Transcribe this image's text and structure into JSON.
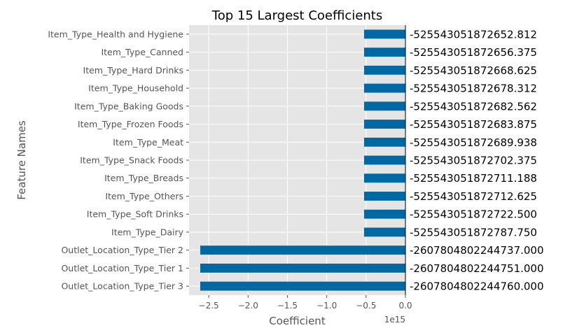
{
  "chart_data": {
    "type": "bar",
    "orientation": "horizontal",
    "title": "Top 15 Largest Coefficients",
    "xlabel": "Coefficient",
    "ylabel": "Feature Names",
    "x_offset_label": "1e15",
    "xlim": [
      -2750000000000000.0,
      0
    ],
    "xticks": [
      -2500000000000000.0,
      -2000000000000000.0,
      -1500000000000000.0,
      -1000000000000000.0,
      -500000000000000.0,
      0
    ],
    "xtick_labels": [
      "−2.5",
      "−2.0",
      "−1.5",
      "−1.0",
      "−0.5",
      "0.0"
    ],
    "grid": true,
    "legend": false,
    "colors": {
      "bar": "#0068A3",
      "plot_background": "#E5E5E5",
      "grid": "#FFFFFF",
      "text": "#555555",
      "title": "#000000"
    },
    "categories": [
      "Item_Type_Health and Hygiene",
      "Item_Type_Canned",
      "Item_Type_Hard Drinks",
      "Item_Type_Household",
      "Item_Type_Baking Goods",
      "Item_Type_Frozen Foods",
      "Item_Type_Meat",
      "Item_Type_Snack Foods",
      "Item_Type_Breads",
      "Item_Type_Others",
      "Item_Type_Soft Drinks",
      "Item_Type_Dairy",
      "Outlet_Location_Type_Tier 2",
      "Outlet_Location_Type_Tier 1",
      "Outlet_Location_Type_Tier 3"
    ],
    "values": [
      -525543051872652.8,
      -525543051872656.4,
      -525543051872668.6,
      -525543051872678.3,
      -525543051872682.56,
      -525543051872683.9,
      -525543051872689.94,
      -525543051872702.4,
      -525543051872711.2,
      -525543051872712.6,
      -525543051872722.5,
      -525543051872787.75,
      -2607804802244737.0,
      -2607804802244751.0,
      -2607804802244760.0
    ],
    "value_labels": [
      "-525543051872652.812",
      "-525543051872656.375",
      "-525543051872668.625",
      "-525543051872678.312",
      "-525543051872682.562",
      "-525543051872683.875",
      "-525543051872689.938",
      "-525543051872702.375",
      "-525543051872711.188",
      "-525543051872712.625",
      "-525543051872722.500",
      "-525543051872787.750",
      "-2607804802244737.000",
      "-2607804802244751.000",
      "-2607804802244760.000"
    ]
  }
}
